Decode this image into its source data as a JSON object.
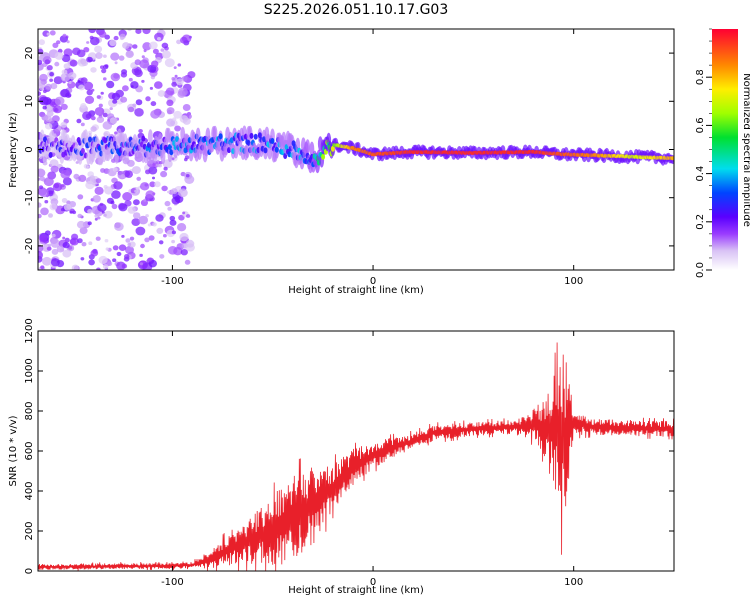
{
  "title": "S225.2026.051.10.17.G03",
  "colors": {
    "snr_line": "#e8202a",
    "background": "#ffffff",
    "axis": "#000000"
  },
  "chart_data": [
    {
      "type": "heatmap",
      "name": "spectrogram",
      "xlabel": "Height of straight line (km)",
      "ylabel": "Frequency (Hz)",
      "xlim": [
        -167,
        150
      ],
      "ylim": [
        -25,
        25
      ],
      "xticks": [
        -100,
        0,
        100
      ],
      "xtick_labels": [
        "-100",
        "0",
        "100"
      ],
      "yticks": [
        -20,
        -10,
        0,
        10,
        20
      ],
      "ytick_labels": [
        "-20",
        "-10",
        "0",
        "10",
        "20"
      ],
      "colorbar": {
        "label": "Normalized spectral amplitude",
        "range": [
          0,
          1
        ],
        "ticks": [
          0.0,
          0.2,
          0.4,
          0.6,
          0.8
        ],
        "tick_labels": [
          "0.0",
          "0.2",
          "0.4",
          "0.6",
          "0.8"
        ],
        "colormap": "rainbow (white-purple-blue-cyan-green-yellow-red)"
      },
      "ridge": {
        "description": "dominant frequency track",
        "x": [
          -160,
          -120,
          -90,
          -60,
          -40,
          -30,
          -20,
          -10,
          0,
          20,
          50,
          80,
          95,
          110,
          130,
          148
        ],
        "y": [
          0.5,
          0.5,
          1.0,
          1.5,
          0.0,
          -2.0,
          1.0,
          0.3,
          -1.0,
          -0.5,
          -0.7,
          -0.5,
          -1.0,
          -1.2,
          -1.5,
          -1.8
        ],
        "amplitude": [
          0.2,
          0.25,
          0.3,
          0.3,
          0.3,
          0.35,
          0.6,
          0.85,
          0.9,
          0.95,
          0.95,
          0.95,
          0.9,
          0.85,
          0.7,
          0.8
        ]
      },
      "noise_region": {
        "x": [
          -167,
          -90
        ],
        "y": [
          -25,
          25
        ],
        "amplitude": 0.1
      }
    },
    {
      "type": "line",
      "name": "snr",
      "xlabel": "Height of straight line (km)",
      "ylabel": "SNR (10 * v/v)",
      "xlim": [
        -167,
        150
      ],
      "ylim": [
        0,
        1200
      ],
      "xticks": [
        -100,
        0,
        100
      ],
      "xtick_labels": [
        "-100",
        "0",
        "100"
      ],
      "yticks": [
        0,
        200,
        400,
        600,
        800,
        1000,
        1200
      ],
      "ytick_labels": [
        "0",
        "200",
        "400",
        "600",
        "800",
        "1000",
        "1200"
      ],
      "envelope": {
        "x": [
          -167,
          -120,
          -100,
          -90,
          -80,
          -70,
          -60,
          -50,
          -40,
          -30,
          -20,
          -10,
          0,
          10,
          20,
          30,
          50,
          70,
          80,
          88,
          92,
          95,
          97,
          100,
          110,
          130,
          150
        ],
        "mean": [
          20,
          25,
          25,
          30,
          60,
          120,
          160,
          200,
          260,
          330,
          420,
          520,
          580,
          620,
          650,
          690,
          710,
          720,
          730,
          720,
          700,
          650,
          700,
          740,
          720,
          715,
          710
        ],
        "amp": [
          15,
          15,
          15,
          15,
          50,
          90,
          130,
          180,
          220,
          200,
          120,
          90,
          70,
          50,
          40,
          40,
          35,
          35,
          80,
          180,
          350,
          500,
          300,
          60,
          40,
          40,
          40
        ]
      }
    }
  ]
}
